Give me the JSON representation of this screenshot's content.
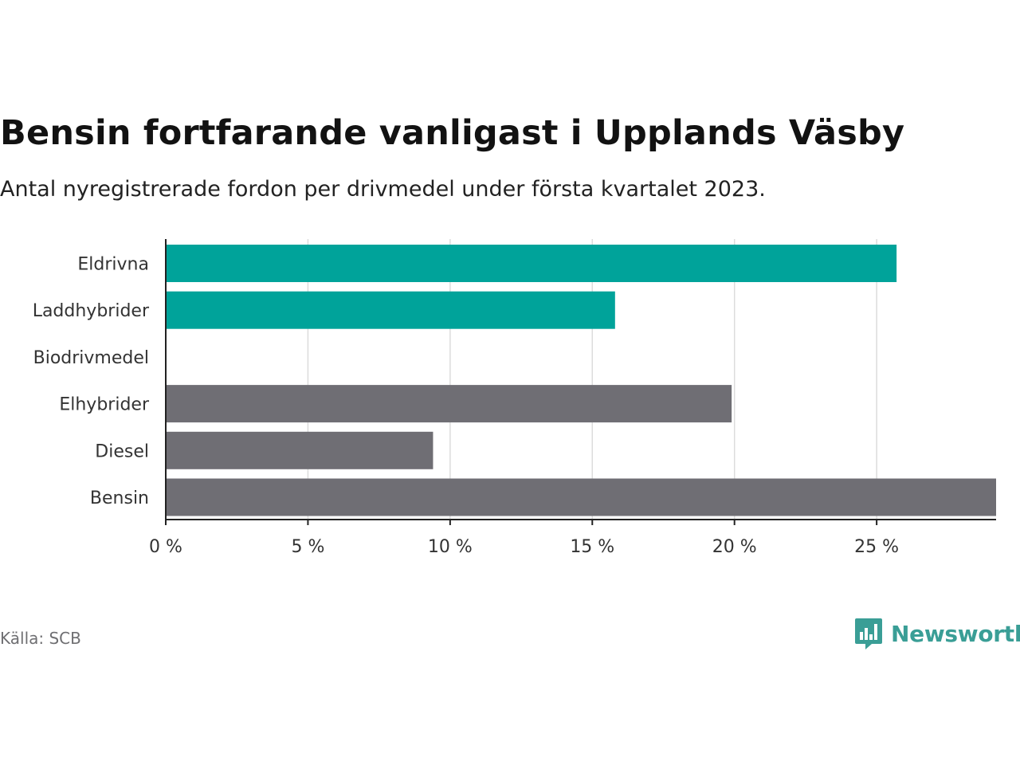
{
  "title": "Bensin fortfarande vanligast i Upplands Väsby",
  "subtitle": "Antal nyregistrerade fordon per drivmedel under första kvartalet 2023.",
  "source": "Källa: SCB",
  "brand": "Newsworthy",
  "colors": {
    "teal": "#00a39a",
    "gray": "#6f6e74",
    "brand": "#3a9e96"
  },
  "chart_data": {
    "type": "bar",
    "orientation": "horizontal",
    "categories": [
      "Eldrivna",
      "Laddhybrider",
      "Biodrivmedel",
      "Elhybrider",
      "Diesel",
      "Bensin"
    ],
    "values": [
      25.7,
      15.8,
      0,
      19.9,
      9.4,
      29.2
    ],
    "bar_colors": [
      "teal",
      "teal",
      "gray",
      "gray",
      "gray",
      "gray"
    ],
    "xlim": [
      0,
      29.2
    ],
    "xticks": [
      0,
      5,
      10,
      15,
      20,
      25
    ],
    "xtick_labels": [
      "0 %",
      "5 %",
      "10 %",
      "15 %",
      "20 %",
      "25 %"
    ],
    "grid": true
  }
}
